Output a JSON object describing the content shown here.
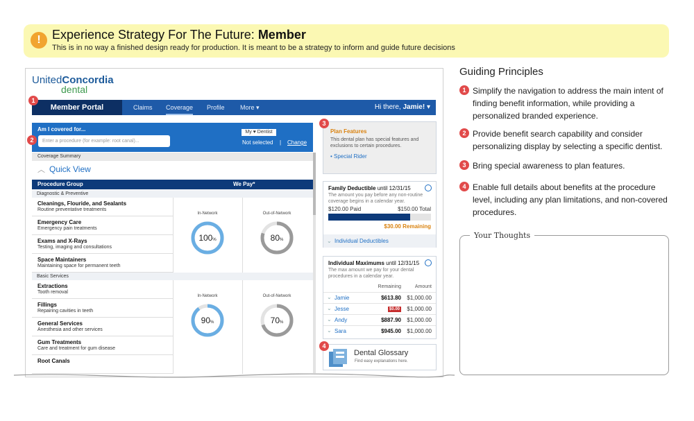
{
  "banner": {
    "icon": "exclamation-icon",
    "title_prefix": "Experience Strategy For The Future: ",
    "title_bold": "Member",
    "subtitle": "This is in no way a finished design ready for production. It is meant to be a strategy to inform and guide future decisions"
  },
  "logo": {
    "line1_a": "United",
    "line1_b": "Concordia",
    "line2": "dental"
  },
  "nav": {
    "portal": "Member Portal",
    "items": [
      "Claims",
      "Coverage",
      "Profile",
      "More"
    ],
    "greeting": "Hi there, ",
    "user": "Jamie!",
    "badge": "1"
  },
  "search": {
    "label": "Am I covered for...",
    "placeholder": "Enter a procedure (for example: root canal)...",
    "badge": "2",
    "dentist_btn": "My ♥ Dentist",
    "dentist_status": "Not selected",
    "divider": "|",
    "change": "Change"
  },
  "coverage": {
    "summary": "Coverage Summary",
    "quick_view": "Quick View",
    "col_group": "Procedure Group",
    "col_pay": "We Pay*",
    "groups": [
      {
        "name": "Diagnostic & Preventive",
        "in_label": "In-Network",
        "in_pct": "100",
        "out_label": "Out-of-Network",
        "out_pct": "80",
        "items": [
          {
            "name": "Cleanings, Flouride, and Sealants",
            "desc": "Routine preventative treatments"
          },
          {
            "name": "Emergency Care",
            "desc": "Emergency pain treatments"
          },
          {
            "name": "Exams and X-Rays",
            "desc": "Testing, imaging and consultations"
          },
          {
            "name": "Space Maintainers",
            "desc": "Maintaining space for permanent teeth"
          }
        ]
      },
      {
        "name": "Basic Services",
        "in_label": "In-Network",
        "in_pct": "90",
        "out_label": "Out-of-Network",
        "out_pct": "70",
        "items": [
          {
            "name": "Extractions",
            "desc": "Tooth removal"
          },
          {
            "name": "Fillings",
            "desc": "Repairing cavities in teeth"
          },
          {
            "name": "General Services",
            "desc": "Anesthesia and other services"
          },
          {
            "name": "Gum Treatments",
            "desc": "Care and treatment for gum disease"
          },
          {
            "name": "Root Canals",
            "desc": ""
          }
        ]
      }
    ],
    "pct_sign": "%",
    "in_fill": [
      1.0,
      0.9
    ],
    "out_fill": [
      0.8,
      0.7
    ]
  },
  "features": {
    "badge": "3",
    "title": "Plan Features",
    "desc": "This dental plan has special features and exclusions to certain procedures.",
    "link": "• Special Rider"
  },
  "deductible": {
    "title": "Family Deductible",
    "until": " until 12/31/15",
    "desc": "The amount you pay before any non-routine coverage begins in a calendar year.",
    "paid": "$120.00 Paid",
    "total": "$150.00 Total",
    "paid_fraction": 0.8,
    "remaining": "$30.00 Remaining",
    "individual": "Individual Deductibles"
  },
  "maximums": {
    "title": "Individual Maximums",
    "until": " until 12/31/15",
    "desc": "The max amount we pay for your dental procedures in a calendar year.",
    "col_remaining": "Remaining",
    "col_amount": "Amount",
    "rows": [
      {
        "name": "Jamie",
        "remaining": "$613.80",
        "amount": "$1,000.00",
        "zero": false
      },
      {
        "name": "Jesse",
        "remaining": "$0.00",
        "amount": "$1,000.00",
        "zero": true
      },
      {
        "name": "Andy",
        "remaining": "$887.90",
        "amount": "$1,000.00",
        "zero": false
      },
      {
        "name": "Sara",
        "remaining": "$945.00",
        "amount": "$1,000.00",
        "zero": false
      }
    ]
  },
  "glossary": {
    "badge": "4",
    "title": "Dental Glossary",
    "sub": "Find easy explanations here."
  },
  "principles": {
    "heading": "Guiding Principles",
    "items": [
      {
        "num": "1",
        "text": "Simplify the navigation to address the main intent of finding benefit information, while providing a personalized branded experience."
      },
      {
        "num": "2",
        "text": "Provide benefit search capability and consider personalizing display by selecting a specific dentist."
      },
      {
        "num": "3",
        "text": "Bring special awareness to plan features."
      },
      {
        "num": "4",
        "text": "Enable full details about benefits at the procedure level, including any plan limitations, and non-covered procedures."
      }
    ]
  },
  "thoughts": {
    "label": "Your Thoughts"
  },
  "colors": {
    "primary": "#1f6fc4",
    "navy": "#0d3a7a",
    "accent": "#d9820f",
    "badge": "#e14a4a",
    "banner": "#fbf8b3"
  }
}
